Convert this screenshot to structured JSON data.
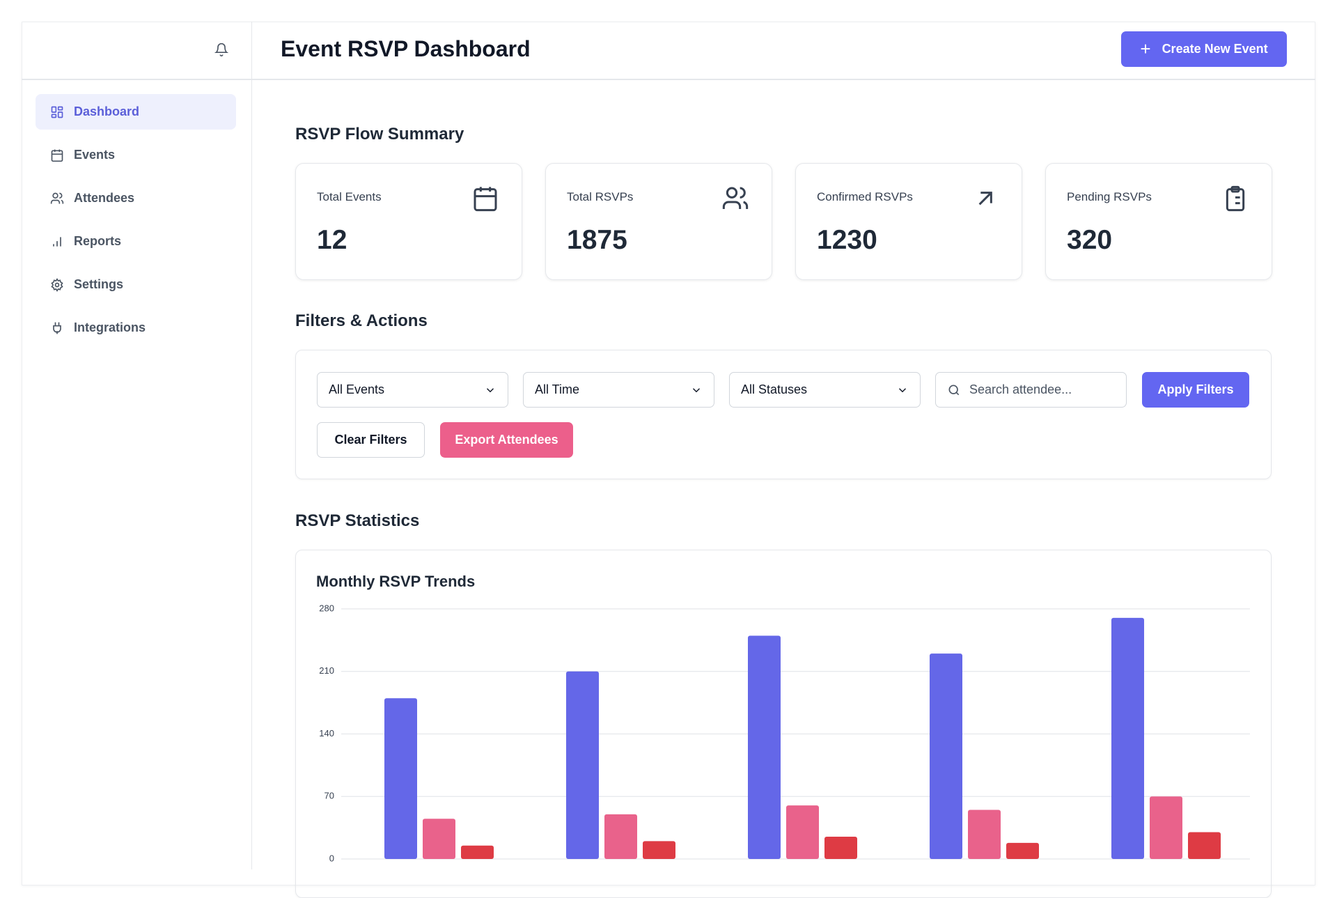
{
  "header": {
    "title": "Event RSVP Dashboard",
    "create_button": "Create New Event"
  },
  "sidebar": {
    "nav": [
      "Dashboard",
      "Events",
      "Attendees",
      "Reports",
      "Settings",
      "Integrations"
    ]
  },
  "summary": {
    "title": "RSVP Flow Summary",
    "cards": [
      {
        "label": "Total Events",
        "value": 12
      },
      {
        "label": "Total RSVPs",
        "value": 1875
      },
      {
        "label": "Confirmed RSVPs",
        "value": 1230
      },
      {
        "label": "Pending RSVPs",
        "value": 320
      }
    ]
  },
  "filters": {
    "title": "Filters & Actions",
    "selects": [
      "All Events",
      "All Time",
      "All Statuses"
    ],
    "search_placeholder": "Search attendee...",
    "apply": "Apply Filters",
    "clear": "Clear Filters",
    "export": "Export Attendees"
  },
  "statistics": {
    "title": "RSVP Statistics"
  },
  "chart_data": {
    "type": "bar",
    "title": "Monthly RSVP Trends",
    "categories": [
      null,
      null,
      null,
      null,
      null
    ],
    "series": [
      {
        "color": "#6467e8",
        "values": [
          180,
          210,
          250,
          230,
          270
        ]
      },
      {
        "color": "#e9628b",
        "values": [
          45,
          50,
          60,
          55,
          70
        ]
      },
      {
        "color": "#de3b44",
        "values": [
          15,
          20,
          25,
          18,
          30
        ]
      }
    ],
    "ylim": [
      0,
      280
    ],
    "yticks": [
      0,
      70,
      140,
      210,
      280
    ],
    "grid": true
  }
}
